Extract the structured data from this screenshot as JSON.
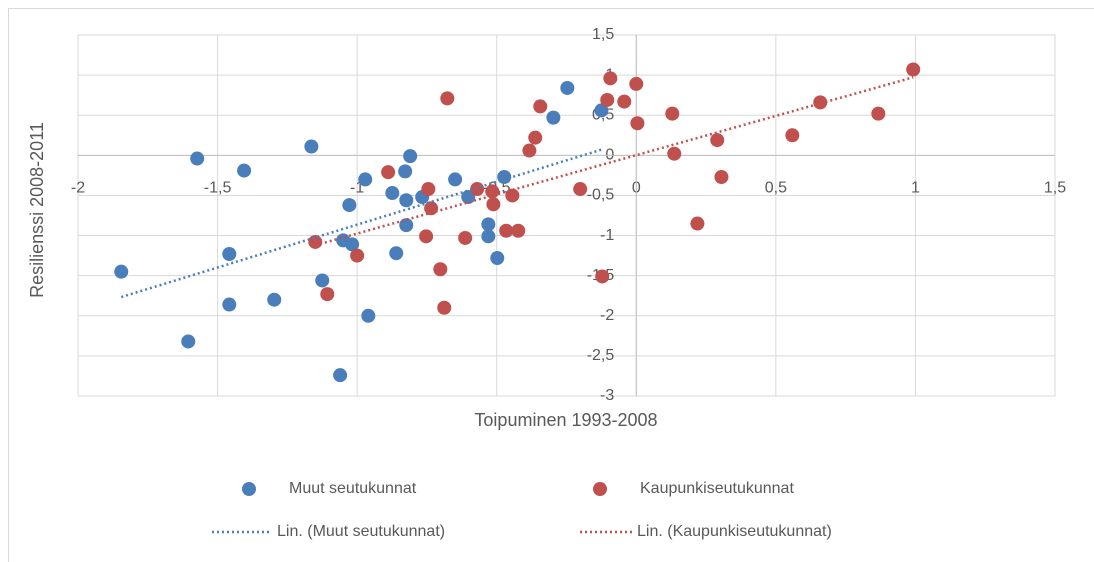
{
  "chart_data": {
    "type": "scatter",
    "x_label": "Toipuminen 1993-2008",
    "y_label": "Resilienssi 2008-2011",
    "xlim": [
      -2,
      1.5
    ],
    "ylim": [
      -3,
      1.5
    ],
    "xticks": [
      -2,
      {
        "value": -1.5,
        "label": "-1,5"
      },
      -1,
      {
        "value": -0.5,
        "label": "-0,5"
      },
      0,
      {
        "value": 0.5,
        "label": "0,5"
      },
      1,
      {
        "value": 1.5,
        "label": "1,5"
      }
    ],
    "yticks": [
      {
        "value": 1.5,
        "label": "1,5"
      },
      1,
      {
        "value": 0.5,
        "label": "0,5"
      },
      0,
      {
        "value": -0.5,
        "label": "-0,5"
      },
      -1,
      {
        "value": -1.5,
        "label": "-1,5"
      },
      -2,
      {
        "value": -2.5,
        "label": "-2,5"
      },
      -3
    ],
    "grid": true,
    "series": [
      {
        "name": "Muut seutukunnat",
        "trendline_name": "Lin. (Muut seutukunnat)",
        "color": "#4a7ebb",
        "x": [
          -1.845,
          -1.573,
          -1.405,
          -1.458,
          -1.458,
          -1.605,
          -1.297,
          -1.164,
          -1.125,
          -1.061,
          -1.05,
          -1.018,
          -1.028,
          -0.971,
          -0.96,
          -0.874,
          -0.86,
          -0.824,
          -0.824,
          -0.828,
          -0.81,
          -0.767,
          -0.649,
          -0.602,
          -0.53,
          -0.53,
          -0.498,
          -0.473,
          -0.297,
          -0.247,
          -0.125
        ],
        "values": [
          -1.45,
          -0.04,
          -0.19,
          -1.23,
          -1.86,
          -2.32,
          -1.8,
          0.11,
          -1.56,
          -2.74,
          -1.06,
          -1.11,
          -0.62,
          -0.3,
          -2.0,
          -0.47,
          -1.22,
          -0.56,
          -0.87,
          -0.2,
          -0.01,
          -0.52,
          -0.3,
          -0.52,
          -0.86,
          -1.01,
          -1.28,
          -0.27,
          0.47,
          0.84,
          0.56
        ]
      },
      {
        "name": "Kaupunkiseutukunnat",
        "trendline_name": "Lin. (Kaupunkiseutukunnat)",
        "color": "#c0504d",
        "x": [
          -1.15,
          -1.107,
          -1.0,
          -0.889,
          -0.745,
          -0.735,
          -0.753,
          -0.702,
          -0.688,
          -0.677,
          -0.613,
          -0.57,
          -0.516,
          -0.512,
          -0.466,
          -0.444,
          -0.423,
          -0.383,
          -0.362,
          -0.344,
          -0.201,
          -0.122,
          -0.093,
          -0.104,
          -0.043,
          0,
          0.004,
          0.129,
          0.136,
          0.219,
          0.29,
          0.305,
          0.559,
          0.659,
          0.867,
          0.992
        ],
        "values": [
          -1.08,
          -1.73,
          -1.25,
          -0.21,
          -0.42,
          -0.66,
          -1.01,
          -1.42,
          -1.9,
          0.71,
          -1.03,
          -0.42,
          -0.45,
          -0.61,
          -0.94,
          -0.5,
          -0.94,
          0.06,
          0.22,
          0.61,
          -0.42,
          -1.51,
          0.96,
          0.69,
          0.67,
          0.89,
          0.4,
          0.52,
          0.02,
          -0.85,
          0.19,
          -0.27,
          0.25,
          0.66,
          0.52,
          1.07
        ]
      }
    ]
  }
}
